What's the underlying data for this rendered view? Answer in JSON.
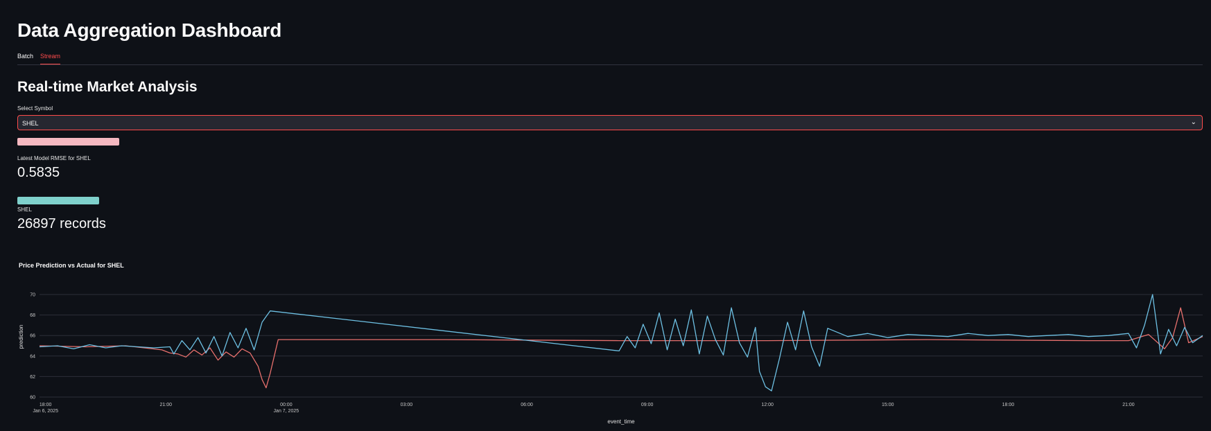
{
  "page": {
    "title": "Data Aggregation Dashboard"
  },
  "tabs": [
    {
      "label": "Batch",
      "active": false
    },
    {
      "label": "Stream",
      "active": true
    }
  ],
  "section": {
    "title": "Real-time Market Analysis"
  },
  "symbol_select": {
    "label": "Select Symbol",
    "value": "SHEL"
  },
  "rmse_metric": {
    "label": "Latest Model RMSE for SHEL",
    "value": "0.5835"
  },
  "records_metric": {
    "label": "SHEL",
    "value": "26897 records"
  },
  "colors": {
    "background": "#0e1117",
    "accent": "#ff4b4b",
    "rmse_bar": "#f5b8c0",
    "records_bar": "#7fd1cc",
    "prediction_line": "#6ec1e4",
    "actual_line": "#e8706d",
    "grid": "#2c2f38"
  },
  "chart_data": {
    "type": "line",
    "title": "Price Prediction vs Actual for SHEL",
    "xlabel": "event_time",
    "ylabel": "prediction",
    "ylim": [
      60,
      70
    ],
    "yticks": [
      60,
      62,
      64,
      66,
      68,
      70
    ],
    "xticks": [
      {
        "t": 0,
        "label": "18:00",
        "sub": "Jan 6, 2025"
      },
      {
        "t": 3,
        "label": "21:00",
        "sub": ""
      },
      {
        "t": 6,
        "label": "00:00",
        "sub": "Jan 7, 2025"
      },
      {
        "t": 9,
        "label": "03:00",
        "sub": ""
      },
      {
        "t": 12,
        "label": "06:00",
        "sub": ""
      },
      {
        "t": 15,
        "label": "09:00",
        "sub": ""
      },
      {
        "t": 18,
        "label": "12:00",
        "sub": ""
      },
      {
        "t": 21,
        "label": "15:00",
        "sub": ""
      },
      {
        "t": 24,
        "label": "18:00",
        "sub": ""
      },
      {
        "t": 27,
        "label": "21:00",
        "sub": ""
      }
    ],
    "xrange": [
      -0.15,
      28.85
    ],
    "grid": true,
    "series": [
      {
        "name": "prediction",
        "color": "#6ec1e4",
        "x": [
          -0.15,
          0.3,
          0.7,
          1.1,
          1.5,
          1.9,
          2.3,
          2.7,
          3.1,
          3.2,
          3.4,
          3.6,
          3.8,
          4.0,
          4.2,
          4.4,
          4.6,
          4.8,
          5.0,
          5.2,
          5.4,
          5.6,
          14.3,
          14.5,
          14.7,
          14.9,
          15.1,
          15.3,
          15.5,
          15.7,
          15.9,
          16.1,
          16.3,
          16.5,
          16.7,
          16.9,
          17.1,
          17.3,
          17.5,
          17.7,
          17.8,
          17.95,
          18.1,
          18.3,
          18.5,
          18.7,
          18.9,
          19.1,
          19.3,
          19.5,
          20.0,
          20.5,
          21.0,
          21.5,
          22.0,
          22.5,
          23.0,
          23.5,
          24.0,
          24.5,
          25.0,
          25.5,
          26.0,
          26.5,
          27.0,
          27.2,
          27.4,
          27.6,
          27.8,
          28.0,
          28.2,
          28.4,
          28.6,
          28.85
        ],
        "y": [
          64.9,
          65.0,
          64.7,
          65.1,
          64.8,
          65.0,
          64.9,
          64.8,
          64.9,
          64.2,
          65.5,
          64.6,
          65.8,
          64.3,
          65.9,
          64.0,
          66.3,
          64.8,
          66.7,
          64.6,
          67.3,
          68.4,
          64.5,
          65.9,
          64.8,
          67.1,
          65.2,
          68.2,
          64.6,
          67.6,
          65.0,
          68.5,
          64.2,
          67.9,
          65.6,
          64.1,
          68.7,
          65.3,
          63.9,
          66.8,
          62.5,
          61.0,
          60.6,
          63.8,
          67.3,
          64.6,
          68.4,
          64.9,
          63.0,
          66.7,
          65.9,
          66.2,
          65.8,
          66.1,
          66.0,
          65.9,
          66.2,
          66.0,
          66.1,
          65.9,
          66.0,
          66.1,
          65.9,
          66.0,
          66.2,
          64.8,
          67.0,
          70.0,
          64.2,
          66.6,
          65.0,
          66.8,
          65.3,
          66.0
        ]
      },
      {
        "name": "actual",
        "color": "#e8706d",
        "x": [
          -0.15,
          1.0,
          2.0,
          2.9,
          3.1,
          3.3,
          3.5,
          3.7,
          3.9,
          4.1,
          4.3,
          4.5,
          4.7,
          4.9,
          5.1,
          5.3,
          5.4,
          5.5,
          5.6,
          5.8,
          10.0,
          14.3,
          18.0,
          22.0,
          26.0,
          27.0,
          27.5,
          27.9,
          28.1,
          28.3,
          28.5,
          28.85
        ],
        "y": [
          65.0,
          64.9,
          65.0,
          64.6,
          64.3,
          64.2,
          63.9,
          64.6,
          64.1,
          64.8,
          63.6,
          64.4,
          63.9,
          64.7,
          64.3,
          63.0,
          61.7,
          60.9,
          62.3,
          65.6,
          65.6,
          65.5,
          65.5,
          65.6,
          65.5,
          65.5,
          66.1,
          64.7,
          65.8,
          68.7,
          65.3,
          65.9
        ]
      }
    ]
  }
}
